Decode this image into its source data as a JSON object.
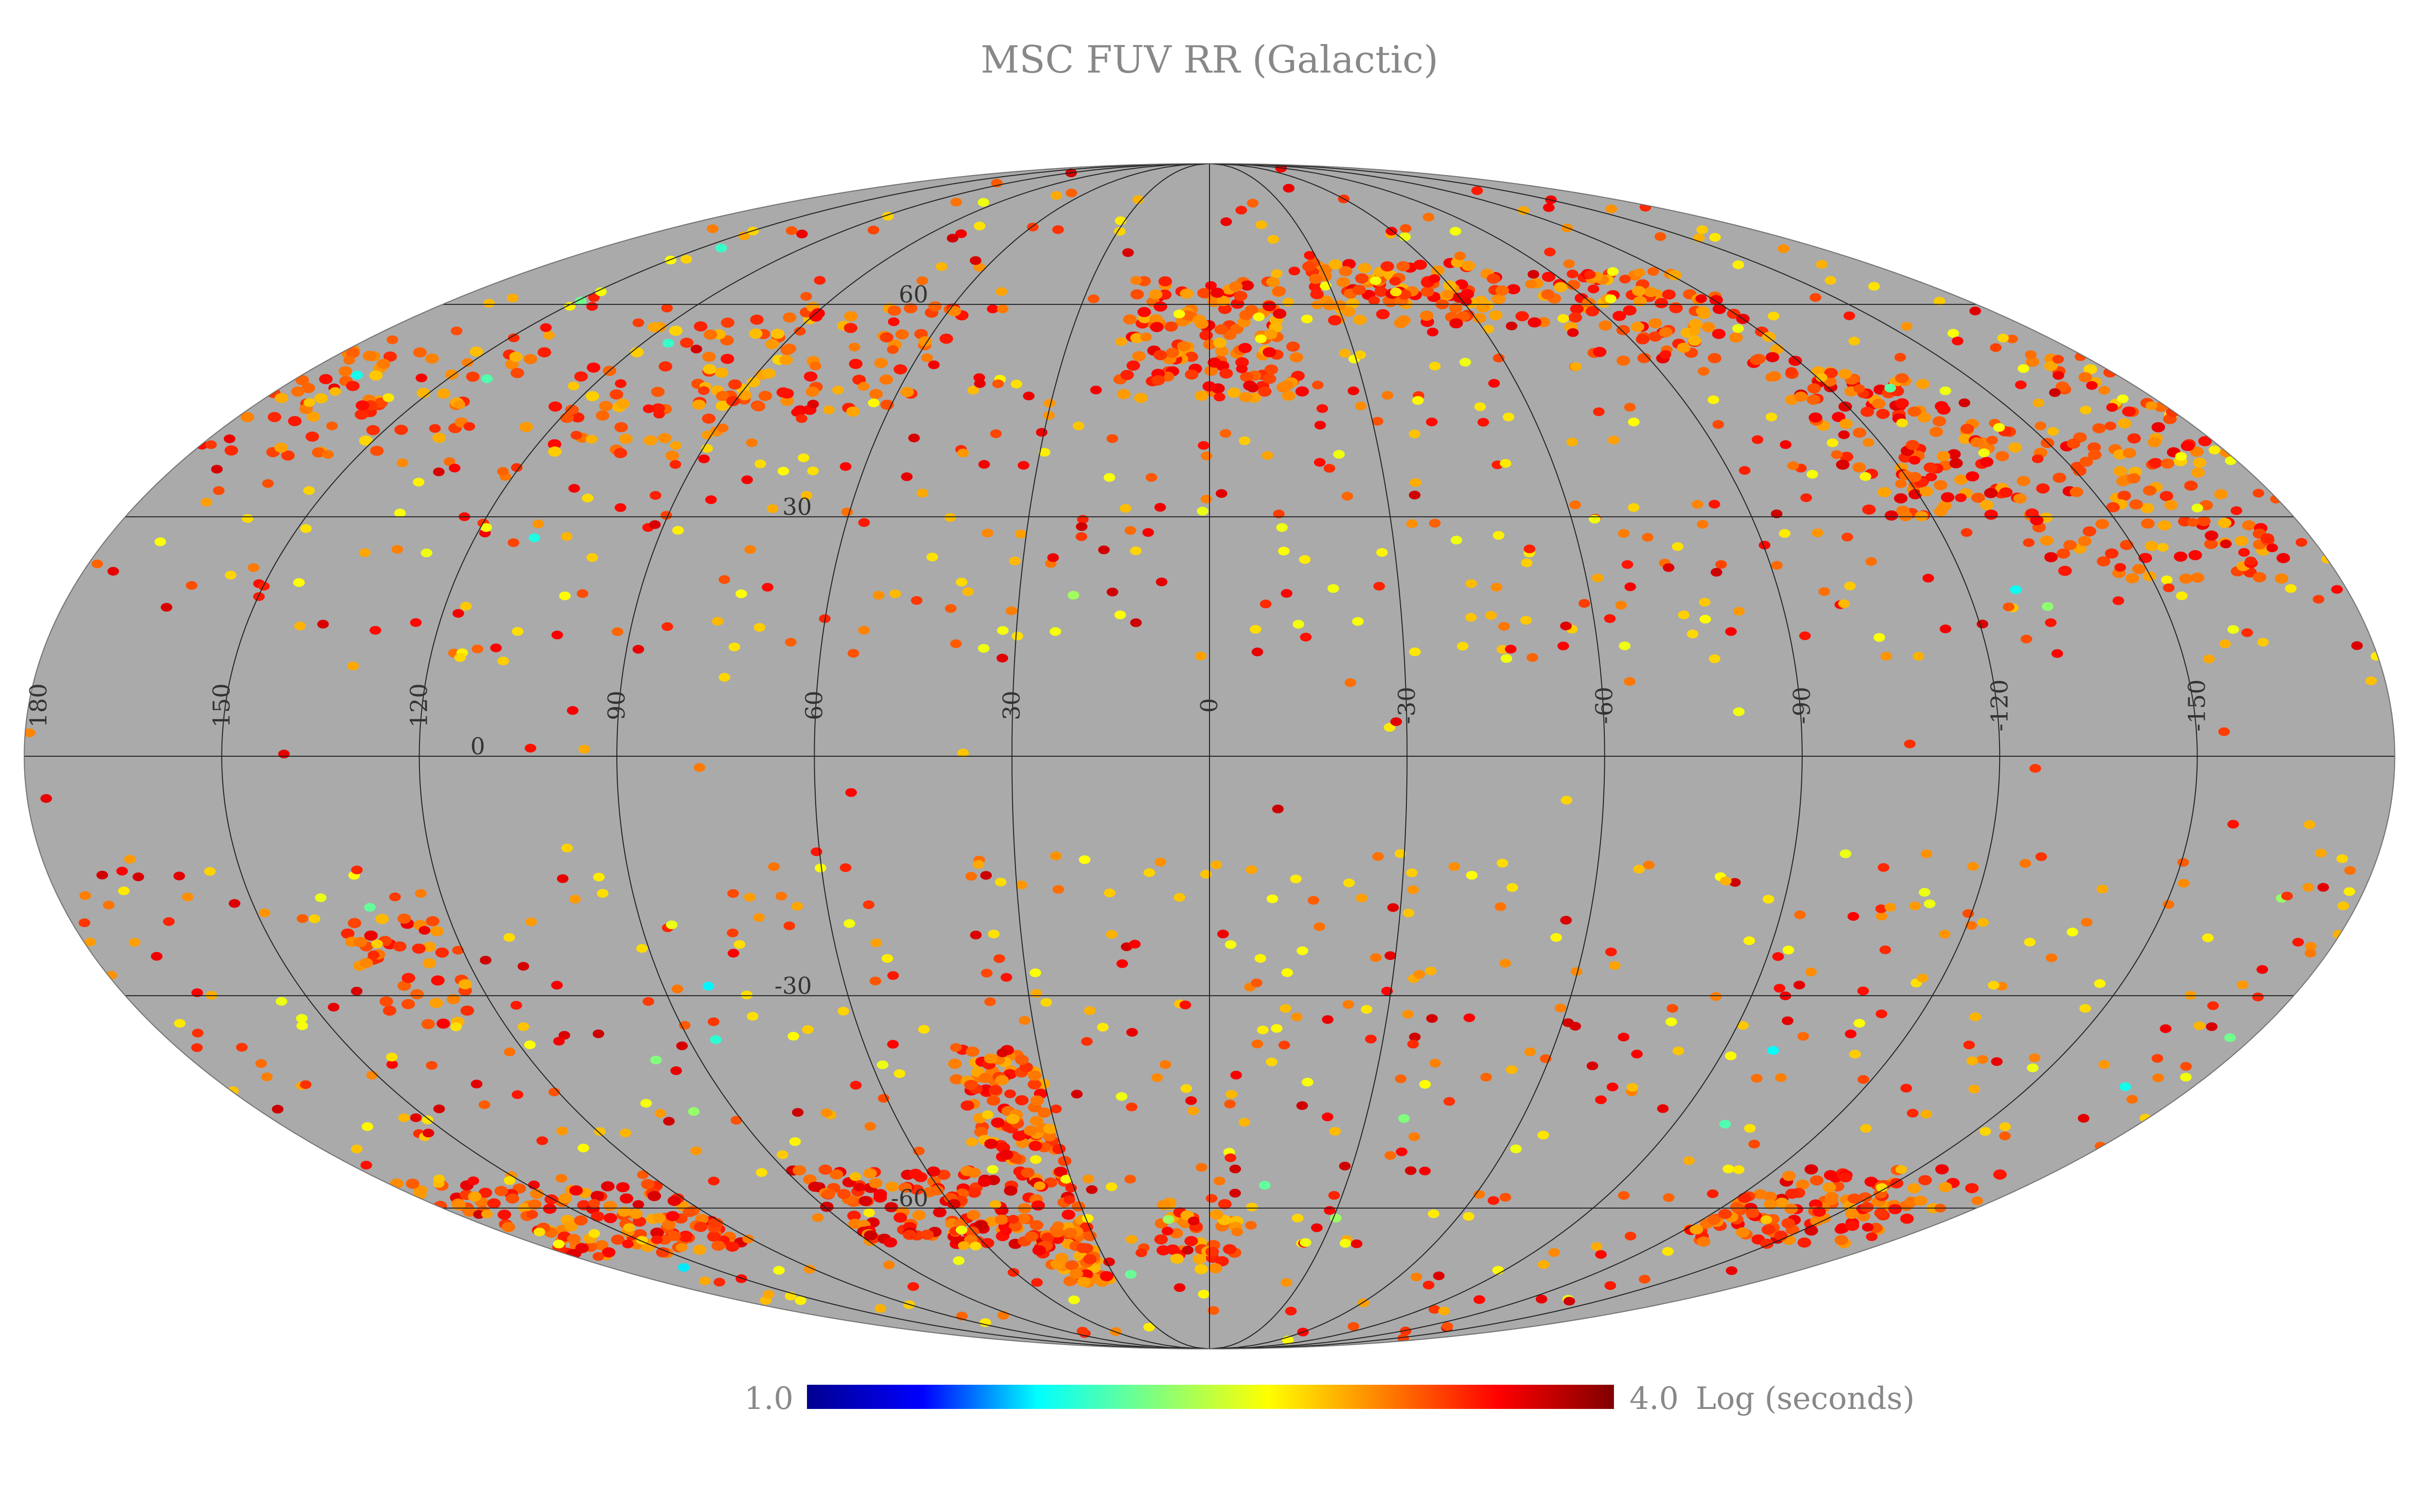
{
  "title": "MSC FUV RR (Galactic)",
  "projection": "mollweide",
  "coordinate_system": "Galactic",
  "longitude_labels": [
    "180",
    "150",
    "120",
    "90",
    "60",
    "30",
    "0",
    "-30",
    "-60",
    "-90",
    "-120",
    "-150"
  ],
  "longitude_values": [
    180,
    150,
    120,
    90,
    60,
    30,
    0,
    -30,
    -60,
    -90,
    -120,
    -150
  ],
  "latitude_labels": [
    "60",
    "30",
    "0",
    "-30",
    "-60"
  ],
  "latitude_values": [
    60,
    30,
    0,
    -30,
    -60
  ],
  "colorbar": {
    "min_label": "1.0",
    "max_label": "4.0",
    "unit_label": "Log (seconds)",
    "min": 1.0,
    "max": 4.0,
    "stops": [
      "#00008f",
      "#0000ff",
      "#00ffff",
      "#7fff7f",
      "#ffff00",
      "#ff8000",
      "#ff0000",
      "#800000"
    ]
  },
  "colors": {
    "background_map": "#aaaaaa",
    "graticule": "#222222",
    "label_text": "#888888"
  },
  "coverage_regions": [
    {
      "lon": 0,
      "lat": 55,
      "dlon": 18,
      "dlat": 9,
      "n": 140,
      "v": 3.3
    },
    {
      "lon": 165,
      "lat": 45,
      "dlon": 30,
      "dlat": 8,
      "n": 90,
      "v": 3.2
    },
    {
      "lon": 105,
      "lat": 48,
      "dlon": 20,
      "dlat": 10,
      "n": 60,
      "v": 3.2
    },
    {
      "lon": 75,
      "lat": 52,
      "dlon": 20,
      "dlat": 8,
      "n": 60,
      "v": 3.25
    },
    {
      "lon": -50,
      "lat": 62,
      "dlon": 25,
      "dlat": 5,
      "n": 100,
      "v": 3.3
    },
    {
      "lon": -100,
      "lat": 58,
      "dlon": 22,
      "dlat": 7,
      "n": 90,
      "v": 3.3
    },
    {
      "lon": -125,
      "lat": 40,
      "dlon": 15,
      "dlat": 10,
      "n": 110,
      "v": 3.35
    },
    {
      "lon": -155,
      "lat": 32,
      "dlon": 20,
      "dlat": 10,
      "n": 110,
      "v": 3.3
    },
    {
      "lon": 60,
      "lat": -60,
      "dlon": 30,
      "dlat": 6,
      "n": 160,
      "v": 3.4
    },
    {
      "lon": 38,
      "lat": -45,
      "dlon": 8,
      "dlat": 8,
      "n": 90,
      "v": 3.3
    },
    {
      "lon": 40,
      "lat": -68,
      "dlon": 8,
      "dlat": 5,
      "n": 50,
      "v": 3.3
    },
    {
      "lon": 150,
      "lat": -62,
      "dlon": 30,
      "dlat": 6,
      "n": 130,
      "v": 3.35
    },
    {
      "lon": -145,
      "lat": -60,
      "dlon": 25,
      "dlat": 6,
      "n": 120,
      "v": 3.35
    },
    {
      "lon": 130,
      "lat": -27,
      "dlon": 8,
      "dlat": 7,
      "n": 40,
      "v": 3.3
    },
    {
      "lon": 3,
      "lat": -65,
      "dlon": 10,
      "dlat": 6,
      "n": 40,
      "v": 3.2
    }
  ]
}
